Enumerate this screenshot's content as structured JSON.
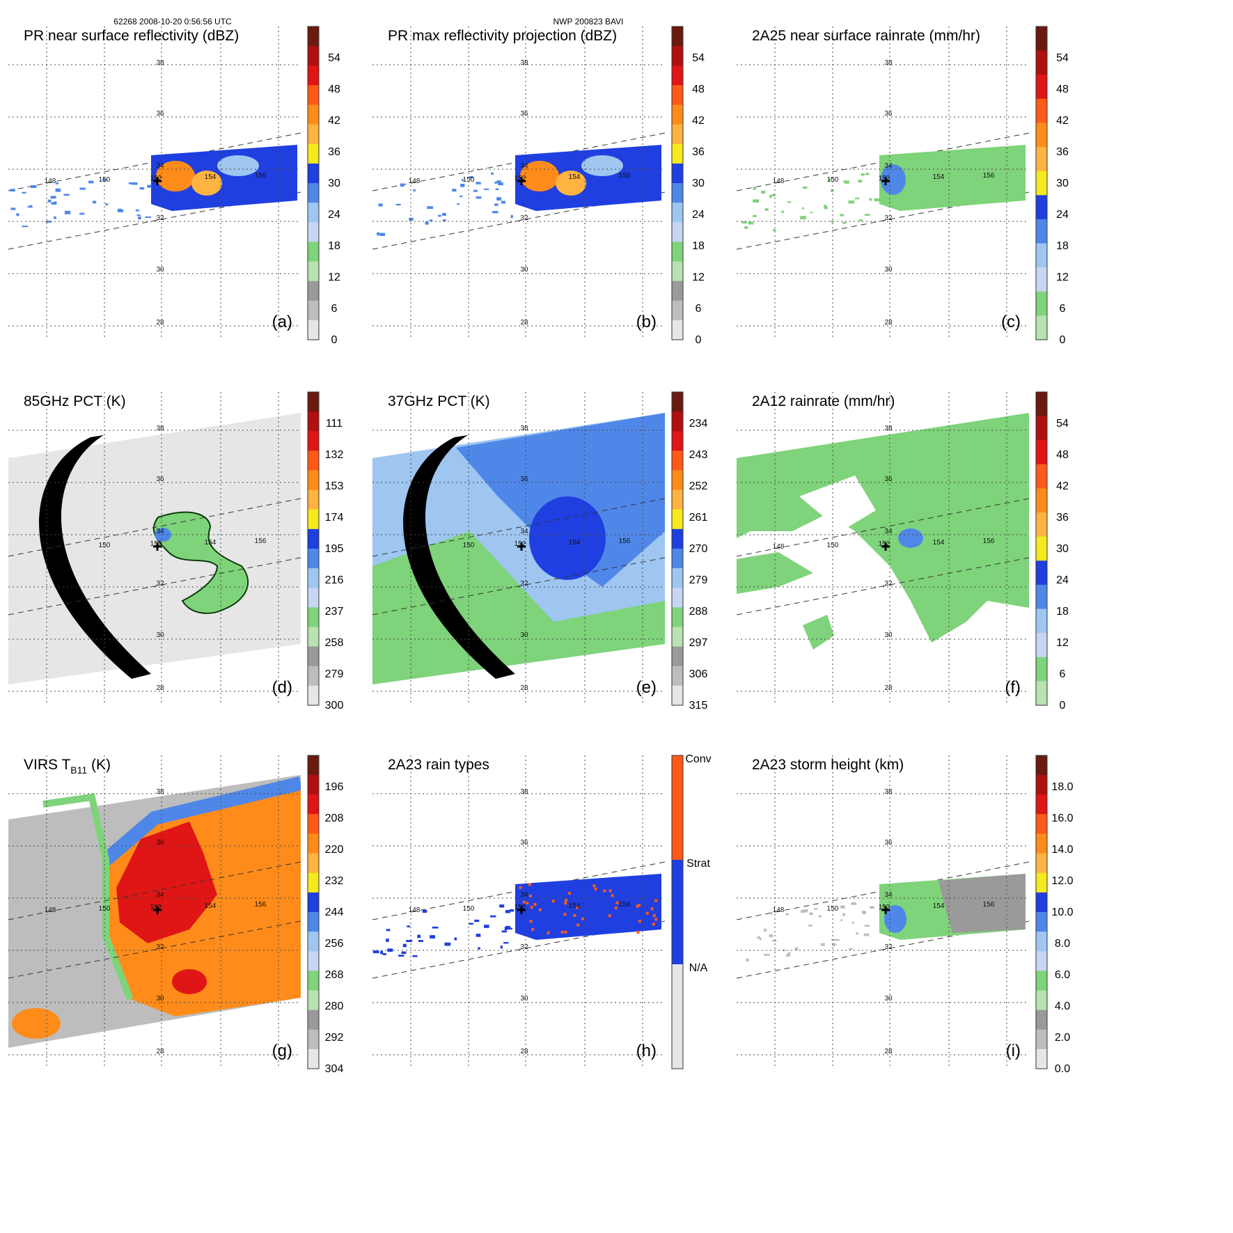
{
  "header": {
    "left": "62268 2008-10-20 0:56:56 UTC",
    "center": "NWP 200823 BAVI"
  },
  "lat_labels": [
    "38",
    "36",
    "34",
    "32",
    "30",
    "28"
  ],
  "lon_labels": [
    "148",
    "150",
    "152",
    "154",
    "156",
    "158"
  ],
  "colors": {
    "grey_light": "#e6e6e6",
    "grey_mid": "#bdbdbd",
    "grey_dark": "#9a9a9a",
    "green_light": "#b6e3b0",
    "green": "#7fd37a",
    "blue_pale": "#c6d6f2",
    "blue_light": "#9ec6f0",
    "blue_mid": "#4f87e8",
    "blue": "#1f3fe0",
    "yellow": "#f4ea1e",
    "orange_light": "#ffb340",
    "orange": "#ff8c1a",
    "orange_red": "#ff5a1a",
    "red": "#e01515",
    "red_dark": "#b01010",
    "brown": "#6b1a10",
    "black": "#000000"
  },
  "panels": [
    {
      "id": "a",
      "title": "PR near surface reflectivity (dBZ)",
      "tag": "(a)",
      "swath": "pr",
      "cbar_labels": [
        "54",
        "48",
        "42",
        "36",
        "30",
        "24",
        "18",
        "12",
        "6",
        "0"
      ],
      "cbar_top": [
        "brown",
        "red_dark",
        "red",
        "orange_red",
        "orange",
        "orange_light",
        "yellow",
        "blue",
        "blue_mid",
        "blue_light",
        "blue_pale",
        "green",
        "green_light",
        "grey_dark",
        "grey_mid",
        "grey_light"
      ]
    },
    {
      "id": "b",
      "title": "PR max reflectivity projection (dBZ)",
      "tag": "(b)",
      "swath": "pr",
      "cbar_labels": [
        "54",
        "48",
        "42",
        "36",
        "30",
        "24",
        "18",
        "12",
        "6",
        "0"
      ],
      "cbar_top": [
        "brown",
        "red_dark",
        "red",
        "orange_red",
        "orange",
        "orange_light",
        "yellow",
        "blue",
        "blue_mid",
        "blue_light",
        "blue_pale",
        "green",
        "green_light",
        "grey_dark",
        "grey_mid",
        "grey_light"
      ]
    },
    {
      "id": "c",
      "title": "2A25 near surface rainrate (mm/hr)",
      "tag": "(c)",
      "swath": "pr",
      "cbar_labels": [
        "54",
        "48",
        "42",
        "36",
        "30",
        "24",
        "18",
        "12",
        "6",
        "0"
      ],
      "cbar_top": [
        "brown",
        "red_dark",
        "red",
        "orange_red",
        "orange",
        "orange_light",
        "yellow",
        "blue",
        "blue_mid",
        "blue_light",
        "blue_pale",
        "green",
        "green_light"
      ]
    },
    {
      "id": "d",
      "title": "85GHz PCT (K)",
      "tag": "(d)",
      "swath": "tmi",
      "cbar_labels": [
        "111",
        "132",
        "153",
        "174",
        "195",
        "216",
        "237",
        "258",
        "279",
        "300"
      ],
      "cbar_top": [
        "brown",
        "red_dark",
        "red",
        "orange_red",
        "orange",
        "orange_light",
        "yellow",
        "blue",
        "blue_mid",
        "blue_light",
        "blue_pale",
        "green",
        "green_light",
        "grey_dark",
        "grey_mid",
        "grey_light"
      ]
    },
    {
      "id": "e",
      "title": "37GHz PCT (K)",
      "tag": "(e)",
      "swath": "tmi",
      "cbar_labels": [
        "234",
        "243",
        "252",
        "261",
        "270",
        "279",
        "288",
        "297",
        "306",
        "315"
      ],
      "cbar_top": [
        "brown",
        "red_dark",
        "red",
        "orange_red",
        "orange",
        "orange_light",
        "yellow",
        "blue",
        "blue_mid",
        "blue_light",
        "blue_pale",
        "green",
        "green_light",
        "grey_dark",
        "grey_mid",
        "grey_light"
      ]
    },
    {
      "id": "f",
      "title": "2A12 rainrate (mm/hr)",
      "tag": "(f)",
      "swath": "tmi",
      "cbar_labels": [
        "54",
        "48",
        "42",
        "36",
        "30",
        "24",
        "18",
        "12",
        "6",
        "0"
      ],
      "cbar_top": [
        "brown",
        "red_dark",
        "red",
        "orange_red",
        "orange",
        "orange_light",
        "yellow",
        "blue",
        "blue_mid",
        "blue_light",
        "blue_pale",
        "green",
        "green_light"
      ]
    },
    {
      "id": "g",
      "title": "VIRS T",
      "title_sub": "B11",
      "title_unit": " (K)",
      "tag": "(g)",
      "swath": "virs",
      "cbar_labels": [
        "196",
        "208",
        "220",
        "232",
        "244",
        "256",
        "268",
        "280",
        "292",
        "304"
      ],
      "cbar_top": [
        "brown",
        "red_dark",
        "red",
        "orange_red",
        "orange",
        "orange_light",
        "yellow",
        "blue",
        "blue_mid",
        "blue_light",
        "blue_pale",
        "green",
        "green_light",
        "grey_dark",
        "grey_mid",
        "grey_light"
      ]
    },
    {
      "id": "h",
      "title": "2A23 rain types",
      "tag": "(h)",
      "swath": "pr",
      "cbar_labels": [
        "Conv",
        "Strat",
        "N/A"
      ],
      "cbar_top": [
        "orange_red",
        "blue",
        "grey_light"
      ]
    },
    {
      "id": "i",
      "title": "2A23 storm height (km)",
      "tag": "(i)",
      "swath": "pr",
      "cbar_labels": [
        "18.0",
        "16.0",
        "14.0",
        "12.0",
        "10.0",
        "8.0",
        "6.0",
        "4.0",
        "2.0",
        "0.0"
      ],
      "cbar_top": [
        "brown",
        "red_dark",
        "red",
        "orange_red",
        "orange",
        "orange_light",
        "yellow",
        "blue",
        "blue_mid",
        "blue_light",
        "blue_pale",
        "green",
        "green_light",
        "grey_dark",
        "grey_mid",
        "grey_light"
      ]
    }
  ]
}
